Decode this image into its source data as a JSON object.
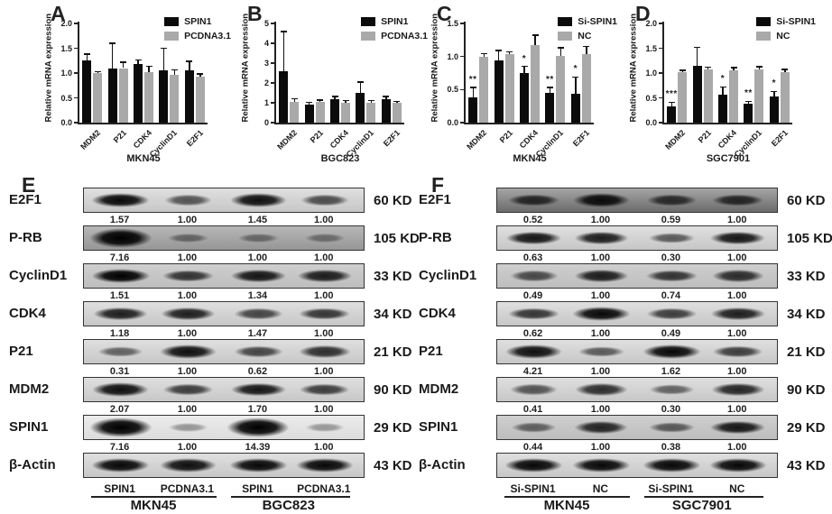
{
  "colors": {
    "bar_black": "#0b0b0b",
    "bar_gray": "#a9a9a9",
    "axis": "#222222"
  },
  "chart_data": [
    {
      "id": "A",
      "type": "bar",
      "panel_label": "A",
      "ylabel": "Relative mRNA expression",
      "xlabel": "MKN45",
      "ylim": [
        0,
        2.0
      ],
      "yticks": [
        "0.0",
        "0.5",
        "1.0",
        "1.5",
        "2.0"
      ],
      "categories": [
        "MDM2",
        "P21",
        "CDK4",
        "CyclinD1",
        "E2F1"
      ],
      "legend_position": "top-right",
      "grid": false,
      "series": [
        {
          "name": "SPIN1",
          "color": "#0b0b0b",
          "values": [
            1.25,
            1.1,
            1.18,
            1.05,
            1.06
          ],
          "errors": [
            0.13,
            0.5,
            0.08,
            0.45,
            0.18
          ],
          "sig": [
            "",
            "",
            "",
            "",
            ""
          ]
        },
        {
          "name": "PCDNA3.1",
          "color": "#a9a9a9",
          "values": [
            1.0,
            1.1,
            1.01,
            0.96,
            0.93
          ],
          "errors": [
            0.03,
            0.12,
            0.13,
            0.1,
            0.05
          ],
          "sig": [
            "",
            "",
            "",
            "",
            ""
          ]
        }
      ]
    },
    {
      "id": "B",
      "type": "bar",
      "panel_label": "B",
      "ylabel": "Relative mRNA expression",
      "xlabel": "BGC823",
      "ylim": [
        0,
        5
      ],
      "yticks": [
        "0",
        "1",
        "2",
        "3",
        "4",
        "5"
      ],
      "categories": [
        "MDM2",
        "P21",
        "CDK4",
        "CyclinD1",
        "E2F1"
      ],
      "legend_position": "top-right",
      "grid": false,
      "series": [
        {
          "name": "SPIN1",
          "color": "#0b0b0b",
          "values": [
            2.6,
            0.9,
            1.2,
            1.5,
            1.2
          ],
          "errors": [
            2.0,
            0.12,
            0.12,
            0.55,
            0.12
          ],
          "sig": [
            "",
            "",
            "",
            "",
            ""
          ]
        },
        {
          "name": "PCDNA3.1",
          "color": "#a9a9a9",
          "values": [
            1.05,
            1.05,
            1.0,
            1.0,
            1.0
          ],
          "errors": [
            0.15,
            0.08,
            0.12,
            0.12,
            0.06
          ],
          "sig": [
            "",
            "",
            "",
            "",
            ""
          ]
        }
      ]
    },
    {
      "id": "C",
      "type": "bar",
      "panel_label": "C",
      "ylabel": "Relative mRNA expression",
      "xlabel": "MKN45",
      "ylim": [
        0,
        1.5
      ],
      "yticks": [
        "0.0",
        "0.5",
        "1.0",
        "1.5"
      ],
      "categories": [
        "MDM2",
        "P21",
        "CDK4",
        "CyclinD1",
        "E2F1"
      ],
      "legend_position": "top-right",
      "grid": false,
      "series": [
        {
          "name": "Si-SPIN1",
          "color": "#0b0b0b",
          "values": [
            0.38,
            0.94,
            0.75,
            0.45,
            0.44
          ],
          "errors": [
            0.15,
            0.15,
            0.1,
            0.08,
            0.25
          ],
          "sig": [
            "**",
            "",
            "*",
            "**",
            "*"
          ]
        },
        {
          "name": "NC",
          "color": "#a9a9a9",
          "values": [
            0.99,
            1.03,
            1.17,
            1.01,
            1.03
          ],
          "errors": [
            0.05,
            0.04,
            0.15,
            0.12,
            0.12
          ],
          "sig": [
            "",
            "",
            "",
            "",
            ""
          ]
        }
      ]
    },
    {
      "id": "D",
      "type": "bar",
      "panel_label": "D",
      "ylabel": "Relative mRNA expression",
      "xlabel": "SGC7901",
      "ylim": [
        0,
        2.0
      ],
      "yticks": [
        "0.0",
        "0.5",
        "1.0",
        "1.5",
        "2.0"
      ],
      "categories": [
        "MDM2",
        "P21",
        "CDK4",
        "CyclinD1",
        "E2F1"
      ],
      "legend_position": "top-right",
      "grid": false,
      "series": [
        {
          "name": "Si-SPIN1",
          "color": "#0b0b0b",
          "values": [
            0.33,
            1.15,
            0.57,
            0.38,
            0.53
          ],
          "errors": [
            0.08,
            0.37,
            0.15,
            0.05,
            0.1
          ],
          "sig": [
            "***",
            "",
            "*",
            "**",
            "*"
          ]
        },
        {
          "name": "NC",
          "color": "#a9a9a9",
          "values": [
            1.01,
            1.07,
            1.05,
            1.07,
            1.02
          ],
          "errors": [
            0.04,
            0.05,
            0.06,
            0.06,
            0.05
          ],
          "sig": [
            "",
            "",
            "",
            "",
            ""
          ]
        }
      ]
    }
  ],
  "blots": [
    {
      "id": "E",
      "panel_label": "E",
      "lane_labels": [
        "SPIN1",
        "PCDNA3.1",
        "SPIN1",
        "PCDNA3.1"
      ],
      "group_labels": [
        "MKN45",
        "BGC823"
      ],
      "rows": [
        {
          "protein": "E2F1",
          "kd": "60 KD",
          "quantification": [
            "1.57",
            "1.00",
            "1.45",
            "1.00"
          ],
          "band_intensities": [
            0.95,
            0.45,
            0.9,
            0.5
          ],
          "blob_lanes": [],
          "strip_shade": "light"
        },
        {
          "protein": "P-RB",
          "kd": "105 KD",
          "quantification": [
            "7.16",
            "1.00",
            "1.00",
            "1.00"
          ],
          "band_intensities": [
            1.0,
            0.18,
            0.15,
            0.12
          ],
          "blob_lanes": [
            0
          ],
          "strip_shade": "gray"
        },
        {
          "protein": "CyclinD1",
          "kd": "33 KD",
          "quantification": [
            "1.51",
            "1.00",
            "1.34",
            "1.00"
          ],
          "band_intensities": [
            1.0,
            0.65,
            0.85,
            0.8
          ],
          "blob_lanes": [],
          "strip_shade": "mid"
        },
        {
          "protein": "CDK4",
          "kd": "34 KD",
          "quantification": [
            "1.18",
            "1.00",
            "1.47",
            "1.00"
          ],
          "band_intensities": [
            0.8,
            0.8,
            0.55,
            0.65
          ],
          "blob_lanes": [],
          "strip_shade": "light"
        },
        {
          "protein": "P21",
          "kd": "21 KD",
          "quantification": [
            "0.31",
            "1.00",
            "0.62",
            "1.00"
          ],
          "band_intensities": [
            0.35,
            0.9,
            0.55,
            0.7
          ],
          "blob_lanes": [],
          "strip_shade": "light"
        },
        {
          "protein": "MDM2",
          "kd": "90 KD",
          "quantification": [
            "2.07",
            "1.00",
            "1.70",
            "1.00"
          ],
          "band_intensities": [
            0.9,
            0.6,
            0.85,
            0.6
          ],
          "blob_lanes": [],
          "strip_shade": "light"
        },
        {
          "protein": "SPIN1",
          "kd": "29 KD",
          "quantification": [
            "7.16",
            "1.00",
            "14.39",
            "1.00"
          ],
          "band_intensities": [
            1.0,
            0.07,
            1.0,
            0.05
          ],
          "blob_lanes": [
            0,
            2
          ],
          "strip_shade": "pale"
        },
        {
          "protein": "β-Actin",
          "kd": "43 KD",
          "quantification": [],
          "band_intensities": [
            0.95,
            0.9,
            0.95,
            0.95
          ],
          "blob_lanes": [],
          "strip_shade": "light"
        }
      ]
    },
    {
      "id": "F",
      "panel_label": "F",
      "lane_labels": [
        "Si-SPIN1",
        "NC",
        "Si-SPIN1",
        "NC"
      ],
      "group_labels": [
        "MKN45",
        "SGC7901"
      ],
      "rows": [
        {
          "protein": "E2F1",
          "kd": "60 KD",
          "quantification": [
            "0.52",
            "1.00",
            "0.59",
            "1.00"
          ],
          "band_intensities": [
            0.65,
            0.9,
            0.6,
            0.65
          ],
          "blob_lanes": [],
          "strip_shade": "dark"
        },
        {
          "protein": "P-RB",
          "kd": "105 KD",
          "quantification": [
            "0.63",
            "1.00",
            "0.30",
            "1.00"
          ],
          "band_intensities": [
            0.85,
            0.8,
            0.4,
            0.85
          ],
          "blob_lanes": [],
          "strip_shade": "light"
        },
        {
          "protein": "CyclinD1",
          "kd": "33 KD",
          "quantification": [
            "0.49",
            "1.00",
            "0.74",
            "1.00"
          ],
          "band_intensities": [
            0.5,
            0.8,
            0.65,
            0.7
          ],
          "blob_lanes": [],
          "strip_shade": "mid"
        },
        {
          "protein": "CDK4",
          "kd": "34 KD",
          "quantification": [
            "0.62",
            "1.00",
            "0.49",
            "1.00"
          ],
          "band_intensities": [
            0.65,
            0.95,
            0.6,
            0.8
          ],
          "blob_lanes": [],
          "strip_shade": "light"
        },
        {
          "protein": "P21",
          "kd": "21 KD",
          "quantification": [
            "4.21",
            "1.00",
            "1.62",
            "1.00"
          ],
          "band_intensities": [
            0.9,
            0.4,
            0.95,
            0.6
          ],
          "blob_lanes": [],
          "strip_shade": "light"
        },
        {
          "protein": "MDM2",
          "kd": "90 KD",
          "quantification": [
            "0.41",
            "1.00",
            "0.30",
            "1.00"
          ],
          "band_intensities": [
            0.45,
            0.7,
            0.35,
            0.75
          ],
          "blob_lanes": [],
          "strip_shade": "light"
        },
        {
          "protein": "SPIN1",
          "kd": "29 KD",
          "quantification": [
            "0.44",
            "1.00",
            "0.38",
            "1.00"
          ],
          "band_intensities": [
            0.35,
            0.75,
            0.4,
            0.85
          ],
          "blob_lanes": [],
          "strip_shade": "mid"
        },
        {
          "protein": "β-Actin",
          "kd": "43 KD",
          "quantification": [],
          "band_intensities": [
            0.95,
            0.95,
            0.95,
            0.95
          ],
          "blob_lanes": [],
          "strip_shade": "light"
        }
      ]
    }
  ]
}
